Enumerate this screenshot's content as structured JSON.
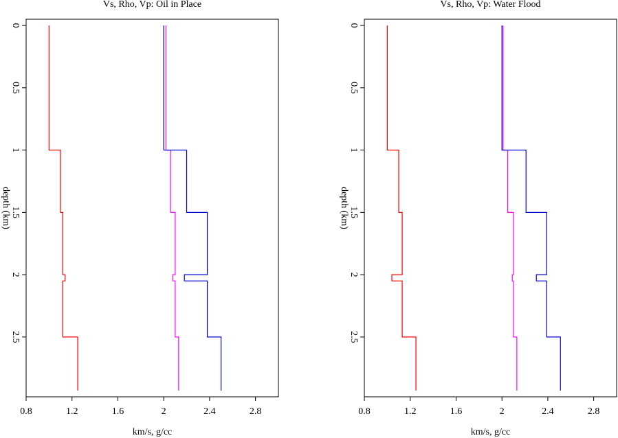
{
  "chart_data": [
    {
      "type": "line",
      "title": "Vs, Rho, Vp: Oil in Place",
      "xlabel": "km/s, g/cc",
      "ylabel": "depth (km)",
      "xlim": [
        0.8,
        3.0
      ],
      "ylim": [
        -0.05,
        2.98
      ],
      "y_inverted": true,
      "xticks": [
        0.8,
        1.2,
        1.6,
        2,
        2.4,
        2.8
      ],
      "yticks": [
        0,
        0.5,
        1,
        1.5,
        2,
        2.5
      ],
      "series": [
        {
          "color": "#ff0000",
          "x": [
            1.0,
            1.0,
            1.1,
            1.1,
            1.12,
            1.12,
            1.14,
            1.14,
            1.12,
            1.12,
            1.25,
            1.25
          ],
          "y": [
            0,
            1.0,
            1.0,
            1.5,
            1.5,
            2.0,
            2.0,
            2.05,
            2.05,
            2.5,
            2.5,
            2.93
          ]
        },
        {
          "color": "#ff00ff",
          "x": [
            2.02,
            2.02,
            2.06,
            2.06,
            2.1,
            2.1,
            2.08,
            2.08,
            2.1,
            2.1,
            2.13,
            2.13
          ],
          "y": [
            0,
            1.0,
            1.0,
            1.5,
            1.5,
            2.0,
            2.0,
            2.05,
            2.05,
            2.5,
            2.5,
            2.93
          ]
        },
        {
          "color": "#0000cc",
          "x": [
            2.0,
            2.0,
            2.2,
            2.2,
            2.38,
            2.38,
            2.18,
            2.18,
            2.38,
            2.38,
            2.5,
            2.5
          ],
          "y": [
            0,
            1.0,
            1.0,
            1.5,
            1.5,
            2.0,
            2.0,
            2.05,
            2.05,
            2.5,
            2.5,
            2.93
          ]
        }
      ]
    },
    {
      "type": "line",
      "title": "Vs, Rho, Vp: Water Flood",
      "xlabel": "km/s, g/cc",
      "ylabel": "depth (km)",
      "xlim": [
        0.8,
        3.0
      ],
      "ylim": [
        -0.05,
        2.98
      ],
      "y_inverted": true,
      "xticks": [
        0.8,
        1.2,
        1.6,
        2,
        2.4,
        2.8
      ],
      "yticks": [
        0,
        0.5,
        1,
        1.5,
        2,
        2.5
      ],
      "series": [
        {
          "color": "#ff0000",
          "x": [
            1.0,
            1.0,
            1.1,
            1.1,
            1.13,
            1.13,
            1.04,
            1.04,
            1.13,
            1.13,
            1.25,
            1.25
          ],
          "y": [
            0,
            1.0,
            1.0,
            1.5,
            1.5,
            2.0,
            2.0,
            2.05,
            2.05,
            2.5,
            2.5,
            2.93
          ]
        },
        {
          "color": "#ff00ff",
          "x": [
            2.01,
            2.01,
            2.05,
            2.05,
            2.1,
            2.1,
            2.09,
            2.09,
            2.1,
            2.1,
            2.13,
            2.13
          ],
          "y": [
            0,
            1.0,
            1.0,
            1.5,
            1.5,
            2.0,
            2.0,
            2.05,
            2.05,
            2.5,
            2.5,
            2.93
          ]
        },
        {
          "color": "#0000cc",
          "x": [
            2.0,
            2.0,
            2.21,
            2.21,
            2.39,
            2.39,
            2.3,
            2.3,
            2.39,
            2.39,
            2.51,
            2.51
          ],
          "y": [
            0,
            1.0,
            1.0,
            1.5,
            1.5,
            2.0,
            2.0,
            2.05,
            2.05,
            2.5,
            2.5,
            2.93
          ]
        }
      ]
    }
  ]
}
